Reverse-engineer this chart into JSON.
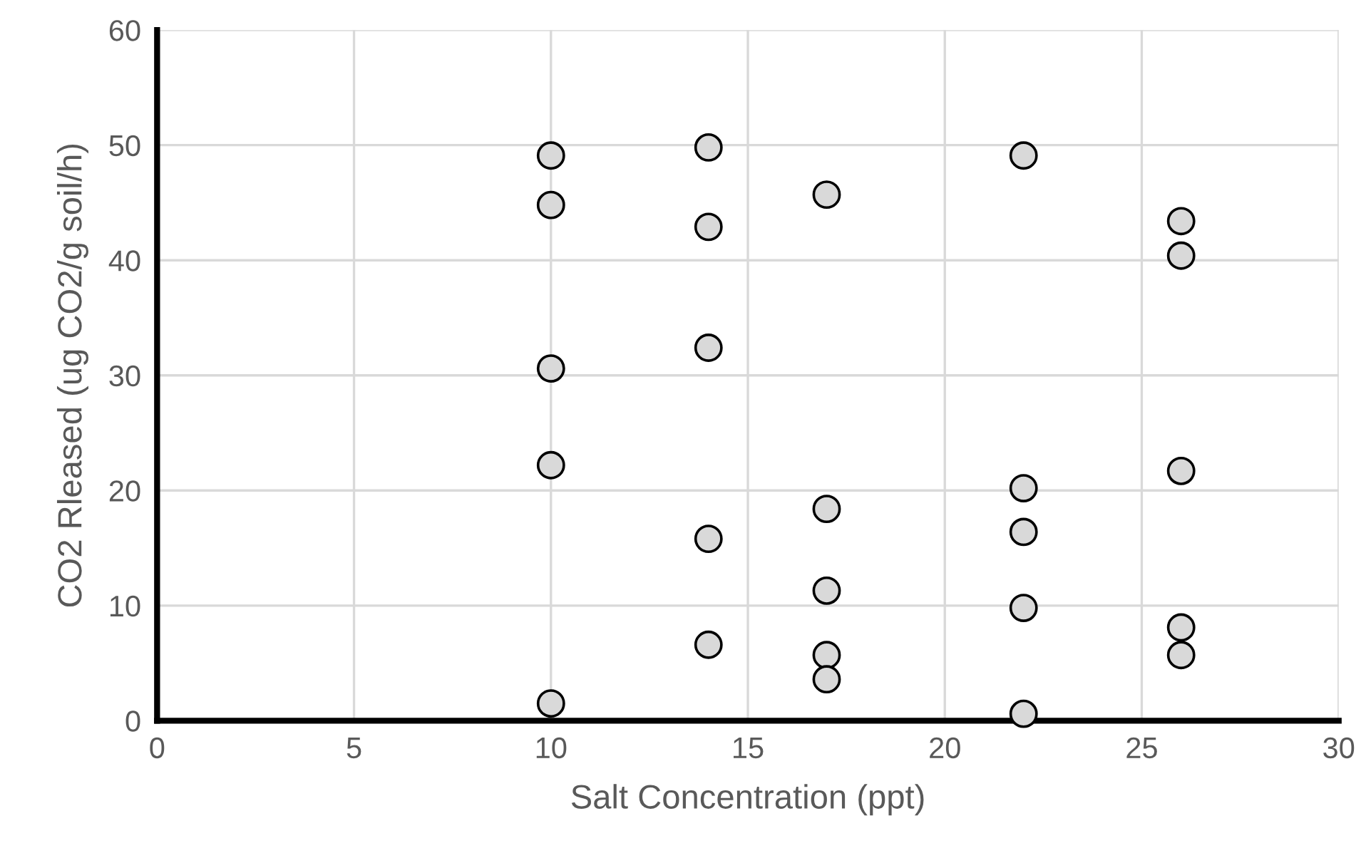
{
  "chart_data": {
    "type": "scatter",
    "xlabel": "Salt Concentration (ppt)",
    "ylabel": "CO2 Rleased (ug CO2/g soil/h)",
    "series": [
      {
        "color": "#d9d9d9",
        "x": [
          10,
          10,
          10,
          10,
          10,
          14,
          14,
          14,
          14,
          14,
          17,
          17,
          17,
          17,
          17,
          22,
          22,
          22,
          22,
          22,
          26,
          26,
          26,
          26,
          26
        ],
        "values": [
          49.1,
          44.8,
          30.6,
          22.2,
          1.5,
          49.8,
          42.9,
          32.4,
          15.8,
          6.6,
          45.7,
          18.4,
          11.3,
          5.7,
          3.6,
          49.1,
          20.2,
          16.4,
          9.8,
          0.6,
          43.4,
          40.4,
          21.7,
          8.1,
          5.7
        ]
      }
    ],
    "xlim": [
      0,
      30
    ],
    "xticks": [
      0,
      5,
      10,
      15,
      20,
      25,
      30
    ],
    "ylim": [
      0,
      60
    ],
    "yticks": [
      0,
      10,
      20,
      30,
      40,
      50,
      60
    ],
    "grid": true,
    "marker": "circle",
    "legend": false
  }
}
